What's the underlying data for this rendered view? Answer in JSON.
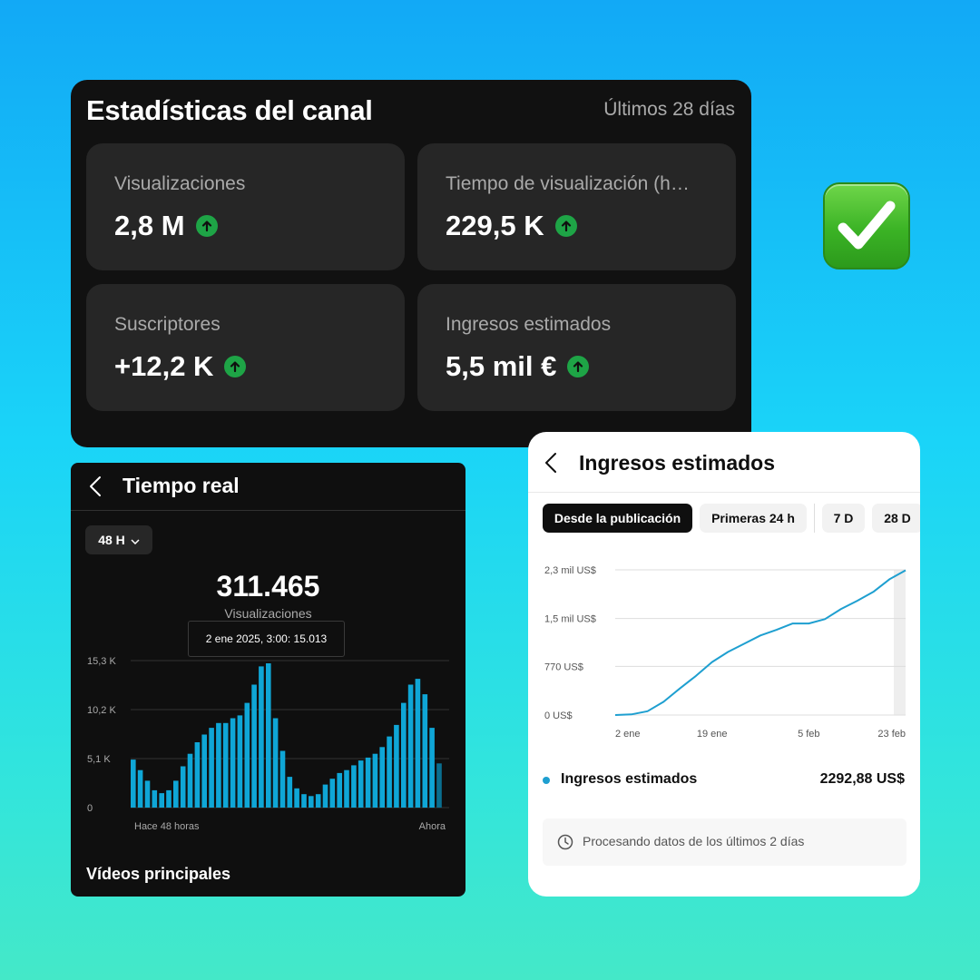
{
  "stats": {
    "title": "Estadísticas del canal",
    "period": "Últimos 28 días",
    "tiles": [
      {
        "label": "Visualizaciones",
        "value": "2,8 M",
        "trend_icon": "arrow-up-circle-icon"
      },
      {
        "label": "Tiempo de visualización (h…",
        "value": "229,5 K",
        "trend_icon": "arrow-up-circle-icon"
      },
      {
        "label": "Suscriptores",
        "value": "+12,2 K",
        "trend_icon": "arrow-up-circle-icon"
      },
      {
        "label": "Ingresos estimados",
        "value": "5,5 mil €",
        "trend_icon": "arrow-up-circle-icon"
      }
    ],
    "trend_color": "#1ea446"
  },
  "badge": {
    "icon": "check-mark-button-icon",
    "color": "#3bb325"
  },
  "realtime": {
    "back_icon": "chevron-left-icon",
    "title": "Tiempo real",
    "range_chip": "48 H",
    "total": "311.465",
    "total_label": "Visualizaciones",
    "tooltip": "2 ene 2025, 3:00: 15.013",
    "section_title": "Vídeos principales"
  },
  "revenue": {
    "back_icon": "chevron-left-icon",
    "title": "Ingresos estimados",
    "tabs": [
      "Desde la publicación",
      "Primeras 24 h",
      "7 D",
      "28 D"
    ],
    "active_tab": "Desde la publicación",
    "legend_label": "Ingresos estimados",
    "legend_value": "2292,88 US$",
    "note": "Procesando datos de los últimos 2 días",
    "note_icon": "clock-icon",
    "series_color": "#1e9fd0"
  },
  "chart_data": [
    {
      "type": "bar",
      "y_ticks": [
        "15,3 K",
        "10,2 K",
        "5,1 K",
        "0"
      ],
      "x_labels": [
        "Hace 48 horas",
        "Ahora"
      ],
      "ylim": [
        0,
        15300
      ],
      "values": [
        5000,
        3900,
        2800,
        1800,
        1500,
        1800,
        2800,
        4300,
        5600,
        6800,
        7600,
        8300,
        8800,
        8800,
        9300,
        9600,
        10900,
        12800,
        14700,
        15013,
        9300,
        5900,
        3200,
        2000,
        1400,
        1200,
        1400,
        2400,
        3000,
        3600,
        3900,
        4400,
        4900,
        5200,
        5600,
        6300,
        7400,
        8600,
        10900,
        12800,
        13400,
        11800,
        8300,
        4600
      ],
      "bar_color": "#0fa6d6"
    },
    {
      "type": "line",
      "y_ticks": [
        "2,3 mil US$",
        "1,5 mil US$",
        "770 US$",
        "0 US$"
      ],
      "x_ticks": [
        "2 ene",
        "19 ene",
        "5 feb",
        "23 feb"
      ],
      "ylim": [
        0,
        2300
      ],
      "x": [
        "2 ene",
        "5 ene",
        "8 ene",
        "11 ene",
        "14 ene",
        "17 ene",
        "19 ene",
        "22 ene",
        "25 ene",
        "28 ene",
        "31 ene",
        "3 feb",
        "5 feb",
        "8 feb",
        "11 feb",
        "14 feb",
        "17 feb",
        "20 feb",
        "23 feb"
      ],
      "values": [
        0,
        10,
        60,
        210,
        420,
        620,
        840,
        1000,
        1130,
        1260,
        1350,
        1450,
        1450,
        1520,
        1680,
        1810,
        1950,
        2150,
        2292.88
      ]
    }
  ]
}
